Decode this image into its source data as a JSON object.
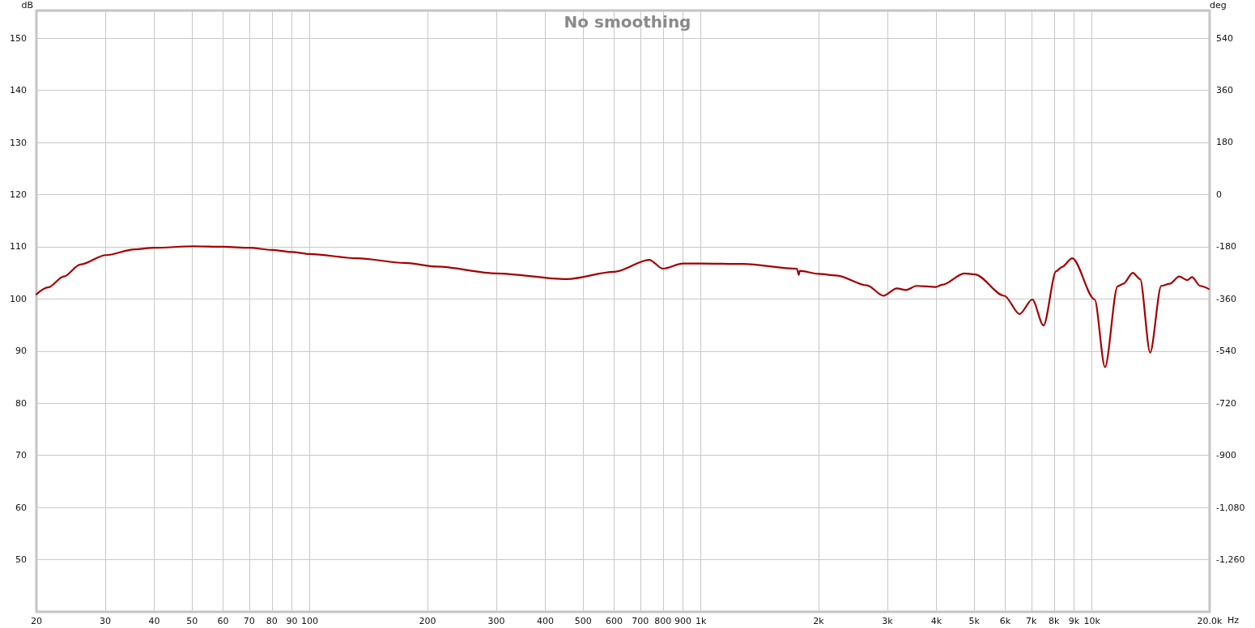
{
  "chart_data": {
    "type": "line",
    "title": "No smoothing",
    "xlabel": "Hz",
    "ylabel": "dB",
    "y2label": "deg",
    "log": "x",
    "grid": true,
    "x": [
      20,
      21.4,
      23.5,
      25.9,
      30.1,
      35.6,
      40,
      50.5,
      60,
      70,
      80,
      90,
      100,
      132,
      175,
      211,
      300,
      454,
      600,
      738,
      800,
      900,
      1000,
      1283,
      1760,
      1780,
      1790,
      2000,
      2220,
      2660,
      2930,
      3170,
      3350,
      3560,
      3990,
      4140,
      4720,
      5020,
      5970,
      6530,
      7040,
      7520,
      8100,
      8370,
      8910,
      10160,
      10800,
      11630,
      12030,
      12720,
      13280,
      14090,
      15040,
      15800,
      16720,
      17520,
      18030,
      18900,
      19900
    ],
    "series": [
      {
        "color": "#a30000",
        "values": [
          100.9,
          102.2,
          104.3,
          106.6,
          108.4,
          109.5,
          109.8,
          110.1,
          110.0,
          109.8,
          109.4,
          109.0,
          108.6,
          107.8,
          106.9,
          106.2,
          104.9,
          103.8,
          105.2,
          107.5,
          105.8,
          106.8,
          106.8,
          106.7,
          105.8,
          104.6,
          105.4,
          104.8,
          104.5,
          102.6,
          100.6,
          102.0,
          101.7,
          102.5,
          102.3,
          102.7,
          104.9,
          104.7,
          100.6,
          97.1,
          99.9,
          94.9,
          105.3,
          106.1,
          107.8,
          99.9,
          86.9,
          102.4,
          102.9,
          105.0,
          103.8,
          89.7,
          102.5,
          102.9,
          104.3,
          103.6,
          104.2,
          102.5,
          101.9
        ]
      }
    ],
    "xlim": [
      20,
      20000
    ],
    "xticks": [
      20,
      30,
      40,
      50,
      60,
      70,
      80,
      90,
      100,
      200,
      300,
      400,
      500,
      600,
      700,
      800,
      900,
      {
        "value": 1000,
        "label": "1k"
      },
      {
        "value": 2000,
        "label": "2k"
      },
      {
        "value": 3000,
        "label": "3k"
      },
      {
        "value": 4000,
        "label": "4k"
      },
      {
        "value": 5000,
        "label": "5k"
      },
      {
        "value": 6000,
        "label": "6k"
      },
      {
        "value": 7000,
        "label": "7k"
      },
      {
        "value": 8000,
        "label": "8k"
      },
      {
        "value": 9000,
        "label": "9k"
      },
      {
        "value": 10000,
        "label": "10k"
      },
      {
        "value": 20000,
        "label": "20.0k"
      }
    ],
    "ylim": [
      40,
      155.3
    ],
    "yticks": [
      50,
      60,
      70,
      80,
      90,
      100,
      110,
      120,
      130,
      140,
      150
    ],
    "y2lim": [
      -1440,
      635
    ],
    "y2ticks": [
      540,
      360,
      180,
      0,
      -180,
      -360,
      -540,
      -720,
      -900,
      {
        "value": -1080,
        "label": "-1,080"
      },
      {
        "value": -1260,
        "label": "-1,260"
      }
    ]
  }
}
